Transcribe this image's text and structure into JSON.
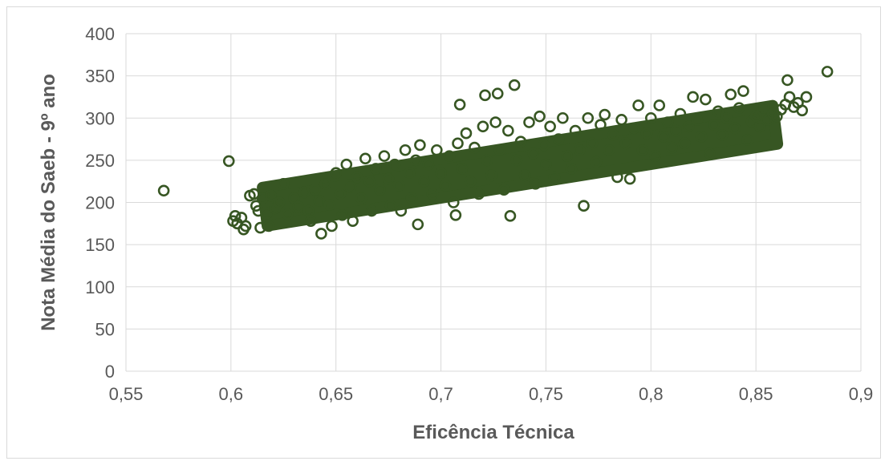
{
  "chart_data": {
    "type": "scatter",
    "title": "",
    "xlabel": "Eficência Técnica",
    "ylabel": "Nota Média do Saeb - 9º ano",
    "xlim": [
      0.55,
      0.9
    ],
    "ylim": [
      0,
      400
    ],
    "x_ticks": [
      0.55,
      0.6,
      0.65,
      0.7,
      0.75,
      0.8,
      0.85,
      0.9
    ],
    "x_tick_labels": [
      "0,55",
      "0,6",
      "0,65",
      "0,7",
      "0,75",
      "0,8",
      "0,85",
      "0,9"
    ],
    "y_ticks": [
      0,
      50,
      100,
      150,
      200,
      250,
      300,
      350,
      400
    ],
    "y_tick_labels": [
      "0",
      "50",
      "100",
      "150",
      "200",
      "250",
      "300",
      "350",
      "400"
    ],
    "grid": true,
    "legend": "none",
    "marker": "open-circle",
    "color": "#375623",
    "series": [
      {
        "points": [
          [
            0.568,
            214
          ],
          [
            0.599,
            249
          ],
          [
            0.601,
            178
          ],
          [
            0.602,
            184
          ],
          [
            0.603,
            175
          ],
          [
            0.605,
            182
          ],
          [
            0.606,
            168
          ],
          [
            0.607,
            172
          ],
          [
            0.609,
            208
          ],
          [
            0.611,
            210
          ],
          [
            0.612,
            196
          ],
          [
            0.613,
            190
          ],
          [
            0.614,
            170
          ],
          [
            0.615,
            205
          ],
          [
            0.617,
            187
          ],
          [
            0.618,
            172
          ],
          [
            0.619,
            208
          ],
          [
            0.621,
            193
          ],
          [
            0.623,
            200
          ],
          [
            0.625,
            222
          ],
          [
            0.627,
            186
          ],
          [
            0.63,
            205
          ],
          [
            0.632,
            195
          ],
          [
            0.635,
            212
          ],
          [
            0.637,
            190
          ],
          [
            0.638,
            178
          ],
          [
            0.64,
            215
          ],
          [
            0.642,
            202
          ],
          [
            0.643,
            163
          ],
          [
            0.645,
            222
          ],
          [
            0.647,
            197
          ],
          [
            0.648,
            172
          ],
          [
            0.65,
            235
          ],
          [
            0.652,
            210
          ],
          [
            0.653,
            185
          ],
          [
            0.655,
            245
          ],
          [
            0.657,
            218
          ],
          [
            0.658,
            178
          ],
          [
            0.66,
            230
          ],
          [
            0.662,
            205
          ],
          [
            0.664,
            252
          ],
          [
            0.666,
            225
          ],
          [
            0.667,
            190
          ],
          [
            0.669,
            240
          ],
          [
            0.671,
            215
          ],
          [
            0.673,
            255
          ],
          [
            0.675,
            228
          ],
          [
            0.676,
            196
          ],
          [
            0.678,
            245
          ],
          [
            0.68,
            220
          ],
          [
            0.681,
            190
          ],
          [
            0.683,
            262
          ],
          [
            0.685,
            235
          ],
          [
            0.686,
            205
          ],
          [
            0.688,
            250
          ],
          [
            0.689,
            174
          ],
          [
            0.69,
            268
          ],
          [
            0.692,
            225
          ],
          [
            0.694,
            245
          ],
          [
            0.696,
            210
          ],
          [
            0.698,
            262
          ],
          [
            0.7,
            235
          ],
          [
            0.702,
            220
          ],
          [
            0.704,
            255
          ],
          [
            0.706,
            200
          ],
          [
            0.707,
            185
          ],
          [
            0.708,
            270
          ],
          [
            0.709,
            316
          ],
          [
            0.71,
            240
          ],
          [
            0.712,
            282
          ],
          [
            0.714,
            225
          ],
          [
            0.716,
            265
          ],
          [
            0.718,
            210
          ],
          [
            0.72,
            290
          ],
          [
            0.721,
            327
          ],
          [
            0.722,
            250
          ],
          [
            0.724,
            232
          ],
          [
            0.726,
            295
          ],
          [
            0.727,
            329
          ],
          [
            0.728,
            262
          ],
          [
            0.73,
            215
          ],
          [
            0.732,
            285
          ],
          [
            0.733,
            184
          ],
          [
            0.735,
            339
          ],
          [
            0.736,
            250
          ],
          [
            0.738,
            272
          ],
          [
            0.74,
            232
          ],
          [
            0.742,
            295
          ],
          [
            0.744,
            258
          ],
          [
            0.745,
            222
          ],
          [
            0.747,
            302
          ],
          [
            0.749,
            268
          ],
          [
            0.75,
            245
          ],
          [
            0.752,
            290
          ],
          [
            0.754,
            230
          ],
          [
            0.756,
            275
          ],
          [
            0.758,
            300
          ],
          [
            0.76,
            255
          ],
          [
            0.762,
            240
          ],
          [
            0.764,
            285
          ],
          [
            0.766,
            262
          ],
          [
            0.768,
            196
          ],
          [
            0.77,
            300
          ],
          [
            0.772,
            270
          ],
          [
            0.774,
            248
          ],
          [
            0.776,
            292
          ],
          [
            0.778,
            304
          ],
          [
            0.78,
            262
          ],
          [
            0.782,
            280
          ],
          [
            0.784,
            230
          ],
          [
            0.786,
            298
          ],
          [
            0.788,
            270
          ],
          [
            0.79,
            228
          ],
          [
            0.792,
            288
          ],
          [
            0.794,
            315
          ],
          [
            0.796,
            262
          ],
          [
            0.798,
            282
          ],
          [
            0.8,
            300
          ],
          [
            0.802,
            255
          ],
          [
            0.804,
            315
          ],
          [
            0.806,
            278
          ],
          [
            0.808,
            295
          ],
          [
            0.81,
            265
          ],
          [
            0.812,
            285
          ],
          [
            0.814,
            305
          ],
          [
            0.816,
            270
          ],
          [
            0.818,
            290
          ],
          [
            0.82,
            325
          ],
          [
            0.822,
            298
          ],
          [
            0.824,
            278
          ],
          [
            0.826,
            322
          ],
          [
            0.828,
            258
          ],
          [
            0.83,
            292
          ],
          [
            0.832,
            308
          ],
          [
            0.834,
            280
          ],
          [
            0.836,
            300
          ],
          [
            0.838,
            328
          ],
          [
            0.84,
            288
          ],
          [
            0.842,
            312
          ],
          [
            0.844,
            332
          ],
          [
            0.846,
            274
          ],
          [
            0.848,
            296
          ],
          [
            0.85,
            302
          ],
          [
            0.852,
            290
          ],
          [
            0.854,
            312
          ],
          [
            0.856,
            298
          ],
          [
            0.858,
            305
          ],
          [
            0.86,
            302
          ],
          [
            0.862,
            310
          ],
          [
            0.864,
            316
          ],
          [
            0.865,
            345
          ],
          [
            0.866,
            325
          ],
          [
            0.868,
            313
          ],
          [
            0.87,
            318
          ],
          [
            0.872,
            309
          ],
          [
            0.874,
            325
          ],
          [
            0.884,
            355
          ]
        ]
      }
    ]
  }
}
